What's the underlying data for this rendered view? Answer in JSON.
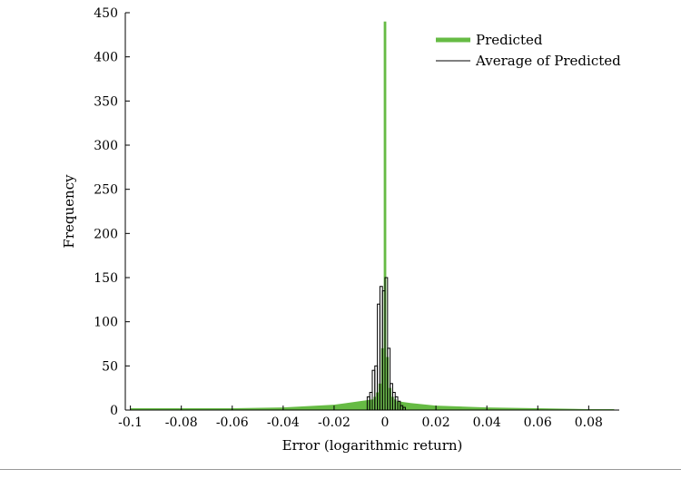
{
  "chart_data": {
    "type": "bar",
    "title": "",
    "xlabel": "Error (logarithmic return)",
    "ylabel": "Frequency",
    "xlim": [
      -0.102,
      0.092
    ],
    "ylim": [
      0,
      450
    ],
    "xticks": [
      -0.1,
      -0.08,
      -0.06,
      -0.04,
      -0.02,
      0,
      0.02,
      0.04,
      0.06,
      0.08
    ],
    "xtick_labels": [
      "-0.1",
      "-0.08",
      "-0.06",
      "-0.04",
      "-0.02",
      "0",
      "0.02",
      "0.04",
      "0.06",
      "0.08"
    ],
    "yticks": [
      0,
      50,
      100,
      150,
      200,
      250,
      300,
      350,
      400,
      450
    ],
    "ytick_labels": [
      "0",
      "50",
      "100",
      "150",
      "200",
      "250",
      "300",
      "350",
      "400",
      "450"
    ],
    "grid": false,
    "legend_position": "top-right",
    "series": [
      {
        "name": "Predicted",
        "color": "#66bb44",
        "style": "filled",
        "bin_width": 0.001,
        "x": [
          -0.005,
          -0.004,
          -0.003,
          -0.002,
          -0.001,
          0.0,
          0.001,
          0.002,
          0.003,
          0.004,
          0.005
        ],
        "values": [
          12,
          15,
          20,
          30,
          70,
          440,
          60,
          25,
          15,
          12,
          10
        ],
        "tails": [
          {
            "x": -0.1,
            "value": 2
          },
          {
            "x": -0.08,
            "value": 2
          },
          {
            "x": -0.06,
            "value": 2
          },
          {
            "x": -0.04,
            "value": 3
          },
          {
            "x": -0.02,
            "value": 6
          },
          {
            "x": -0.01,
            "value": 10
          },
          {
            "x": 0.01,
            "value": 8
          },
          {
            "x": 0.02,
            "value": 5
          },
          {
            "x": 0.04,
            "value": 3
          },
          {
            "x": 0.06,
            "value": 2
          },
          {
            "x": 0.08,
            "value": 1
          },
          {
            "x": 0.09,
            "value": 1
          }
        ]
      },
      {
        "name": "Average of Predicted",
        "color": "#000000",
        "style": "outline",
        "bin_width": 0.001,
        "x": [
          -0.0065,
          -0.0055,
          -0.0045,
          -0.0035,
          -0.0025,
          -0.0015,
          -0.0005,
          0.0005,
          0.0015,
          0.0025,
          0.0035,
          0.0045,
          0.0055,
          0.0065,
          0.0075
        ],
        "values": [
          15,
          20,
          45,
          50,
          120,
          140,
          135,
          150,
          70,
          30,
          20,
          15,
          10,
          5,
          3
        ]
      }
    ]
  }
}
